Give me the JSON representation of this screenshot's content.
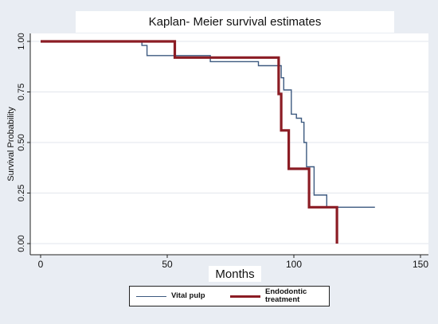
{
  "chart_data": {
    "type": "line",
    "step": true,
    "title": "Kaplan- Meier survival estimates",
    "xlabel": "Months",
    "ylabel": "Survival Probability",
    "xlim": [
      0,
      150
    ],
    "ylim": [
      0,
      1
    ],
    "xticks": [
      0,
      50,
      100,
      150
    ],
    "yticks": [
      0,
      0.25,
      0.5,
      0.75,
      1
    ],
    "ytick_labels": [
      "0.00",
      "0.25",
      "0.50",
      "0.75",
      "1.00"
    ],
    "grid": "horizontal",
    "legend_position": "bottom",
    "series": [
      {
        "name": "Vital pulp",
        "color": "#3d5a80",
        "x": [
          0,
          40,
          42,
          67,
          86,
          95,
          96,
          99,
          101,
          103,
          104,
          105,
          108,
          113,
          132
        ],
        "y": [
          1.0,
          0.98,
          0.93,
          0.9,
          0.88,
          0.82,
          0.76,
          0.64,
          0.62,
          0.6,
          0.5,
          0.38,
          0.24,
          0.18,
          0.18
        ]
      },
      {
        "name": "Endodontic treatment",
        "color": "#8b1c24",
        "x": [
          0,
          53,
          94,
          95,
          98,
          106,
          117,
          117
        ],
        "y": [
          1.0,
          0.92,
          0.74,
          0.56,
          0.37,
          0.18,
          0.18,
          0.0
        ]
      }
    ]
  }
}
